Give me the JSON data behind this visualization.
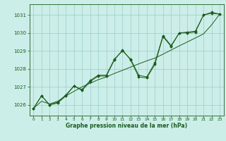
{
  "title": "Graphe pression niveau de la mer (hPa)",
  "background_color": "#cceee8",
  "grid_color": "#99cccc",
  "line_color": "#1a5c1a",
  "x_labels": [
    "0",
    "1",
    "2",
    "3",
    "4",
    "5",
    "6",
    "7",
    "8",
    "9",
    "10",
    "11",
    "12",
    "13",
    "14",
    "15",
    "16",
    "17",
    "18",
    "19",
    "20",
    "21",
    "22",
    "23"
  ],
  "xlim": [
    -0.5,
    23.5
  ],
  "ylim": [
    1025.4,
    1031.6
  ],
  "yticks": [
    1026,
    1027,
    1028,
    1029,
    1030,
    1031
  ],
  "y_main": [
    1025.8,
    1026.5,
    1026.0,
    1026.15,
    1026.55,
    1027.05,
    1026.85,
    1027.35,
    1027.65,
    1027.65,
    1028.55,
    1029.0,
    1028.55,
    1027.65,
    1027.55,
    1028.35,
    1029.85,
    1029.3,
    1030.0,
    1030.0,
    1030.05,
    1031.0,
    1031.15,
    1031.05
  ],
  "y_smooth": [
    1025.8,
    1026.2,
    1026.05,
    1026.2,
    1026.5,
    1026.75,
    1027.0,
    1027.2,
    1027.4,
    1027.55,
    1027.75,
    1027.92,
    1028.1,
    1028.28,
    1028.45,
    1028.6,
    1028.82,
    1029.05,
    1029.28,
    1029.5,
    1029.72,
    1029.95,
    1030.45,
    1031.05
  ],
  "y_alt": [
    1025.8,
    1026.5,
    1026.0,
    1026.1,
    1026.5,
    1027.05,
    1026.8,
    1027.3,
    1027.6,
    1027.6,
    1028.5,
    1029.05,
    1028.5,
    1027.55,
    1027.5,
    1028.25,
    1029.8,
    1029.25,
    1030.0,
    1030.05,
    1030.1,
    1031.0,
    1031.1,
    1031.05
  ]
}
